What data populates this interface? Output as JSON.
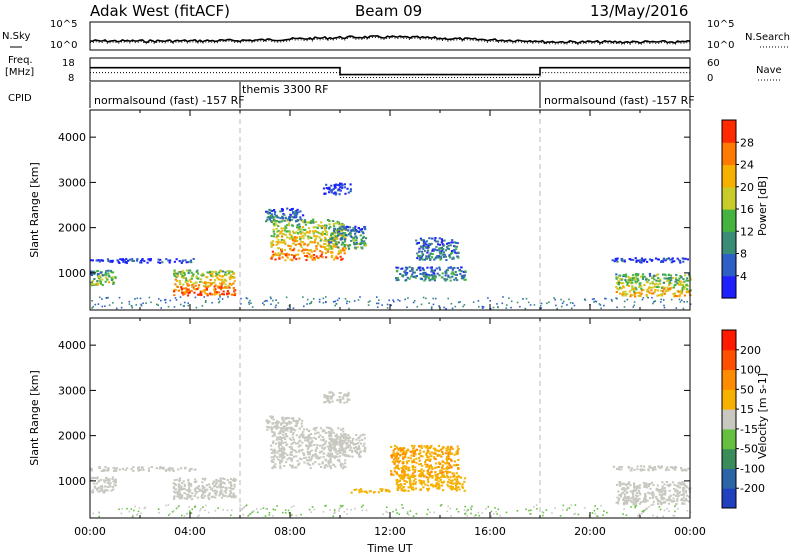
{
  "header": {
    "title": "Adak West (fitACF)",
    "beam": "Beam 09",
    "date": "13/May/2016"
  },
  "top_panels": {
    "nsky_label": "N.Sky",
    "nsearch_label": "N.Search",
    "noise_ticks_left": [
      "10^5",
      "10^0"
    ],
    "noise_ticks_right": [
      "10^5",
      "10^0"
    ],
    "freq_label_1": "Freq.",
    "freq_label_2": "[MHz]",
    "freq_ticks": [
      "18",
      "8"
    ],
    "nave_label": "Nave",
    "nave_ticks": [
      "60",
      "0"
    ],
    "cpid_label": "CPID",
    "cpid_segments": [
      {
        "label": "normalsound (fast) -157 RF",
        "start": 0,
        "end": 6
      },
      {
        "label": "themis 3300 RF",
        "start": 6,
        "end": 18
      },
      {
        "label": "normalsound (fast) -157 RF",
        "start": 18,
        "end": 24
      }
    ],
    "freq_segments": [
      {
        "start": 0,
        "end": 10,
        "freq": 13.8
      },
      {
        "start": 10,
        "end": 18,
        "freq": 10.8
      },
      {
        "start": 18,
        "end": 24,
        "freq": 13.8
      }
    ]
  },
  "chart_data": [
    {
      "type": "heatmap",
      "title": "",
      "quantity": "Power",
      "ylabel": "Slant Range [km]",
      "xlabel": "",
      "xlim": [
        0,
        24
      ],
      "ylim": [
        180,
        4600
      ],
      "yticks": [
        "1000",
        "2000",
        "3000",
        "4000"
      ],
      "colorbar_label": "Power [dB]",
      "colorbar_ticks": [
        "4",
        "8",
        "12",
        "16",
        "20",
        "24",
        "28"
      ],
      "colorbar_colors": [
        "#1f1fff",
        "#2d5fc7",
        "#3a8c77",
        "#45b340",
        "#c8cc2a",
        "#f5b000",
        "#ff7a00",
        "#ff2a00"
      ],
      "regions": [
        {
          "t0": 0.0,
          "t1": 1.0,
          "r0": 750,
          "r1": 1100,
          "level": 0.45
        },
        {
          "t0": 0.0,
          "t1": 4.2,
          "r0": 1240,
          "r1": 1330,
          "level": 0.1
        },
        {
          "t0": 3.3,
          "t1": 5.8,
          "r0": 520,
          "r1": 1080,
          "level": 0.75
        },
        {
          "t0": 7.2,
          "t1": 10.2,
          "r0": 1300,
          "r1": 2200,
          "level": 0.7
        },
        {
          "t0": 7.0,
          "t1": 8.5,
          "r0": 2150,
          "r1": 2450,
          "level": 0.25
        },
        {
          "t0": 9.5,
          "t1": 11.0,
          "r0": 1550,
          "r1": 2050,
          "level": 0.35
        },
        {
          "t0": 13.0,
          "t1": 14.7,
          "r0": 1300,
          "r1": 1800,
          "level": 0.25
        },
        {
          "t0": 12.2,
          "t1": 15.0,
          "r0": 850,
          "r1": 1150,
          "level": 0.3
        },
        {
          "t0": 9.3,
          "t1": 10.4,
          "r0": 2750,
          "r1": 3000,
          "level": 0.1
        },
        {
          "t0": 20.8,
          "t1": 24.0,
          "r0": 1250,
          "r1": 1350,
          "level": 0.12
        },
        {
          "t0": 21.0,
          "t1": 24.0,
          "r0": 500,
          "r1": 1000,
          "level": 0.6
        }
      ]
    },
    {
      "type": "heatmap",
      "title": "",
      "quantity": "Velocity",
      "ylabel": "Slant Range [km]",
      "xlabel": "Time UT",
      "xlim": [
        0,
        24
      ],
      "ylim": [
        180,
        4600
      ],
      "yticks": [
        "1000",
        "2000",
        "3000",
        "4000"
      ],
      "xticks": [
        "00:00",
        "04:00",
        "08:00",
        "12:00",
        "16:00",
        "20:00",
        "00:00"
      ],
      "colorbar_label": "Velocity [m s-1]",
      "colorbar_ticks": [
        "200",
        "100",
        "50",
        "15",
        "-15",
        "-50",
        "-100",
        "-200"
      ],
      "colorbar_colors": [
        "#2040c0",
        "#2c64a8",
        "#3a8c5a",
        "#66c040",
        "#c8c8c0",
        "#f5b000",
        "#ff8c00",
        "#ff5000",
        "#ff1a00"
      ],
      "regions": [
        {
          "t0": 0.0,
          "t1": 1.0,
          "r0": 750,
          "r1": 1100,
          "level": 0.5
        },
        {
          "t0": 0.0,
          "t1": 4.2,
          "r0": 1240,
          "r1": 1330,
          "level": 0.5
        },
        {
          "t0": 3.3,
          "t1": 5.8,
          "r0": 620,
          "r1": 1080,
          "level": 0.5
        },
        {
          "t0": 7.2,
          "t1": 10.2,
          "r0": 1300,
          "r1": 2200,
          "level": 0.5
        },
        {
          "t0": 7.0,
          "t1": 8.5,
          "r0": 2150,
          "r1": 2450,
          "level": 0.5
        },
        {
          "t0": 9.5,
          "t1": 11.0,
          "r0": 1550,
          "r1": 2050,
          "level": 0.5
        },
        {
          "t0": 12.0,
          "t1": 14.7,
          "r0": 1100,
          "r1": 1800,
          "level": 0.65
        },
        {
          "t0": 12.2,
          "t1": 15.0,
          "r0": 800,
          "r1": 1150,
          "level": 0.62
        },
        {
          "t0": 10.4,
          "t1": 12.0,
          "r0": 760,
          "r1": 840,
          "level": 0.62
        },
        {
          "t0": 9.3,
          "t1": 10.4,
          "r0": 2750,
          "r1": 3000,
          "level": 0.5
        },
        {
          "t0": 20.8,
          "t1": 24.0,
          "r0": 1250,
          "r1": 1350,
          "level": 0.5
        },
        {
          "t0": 21.0,
          "t1": 24.0,
          "r0": 500,
          "r1": 1000,
          "level": 0.5
        }
      ]
    }
  ]
}
